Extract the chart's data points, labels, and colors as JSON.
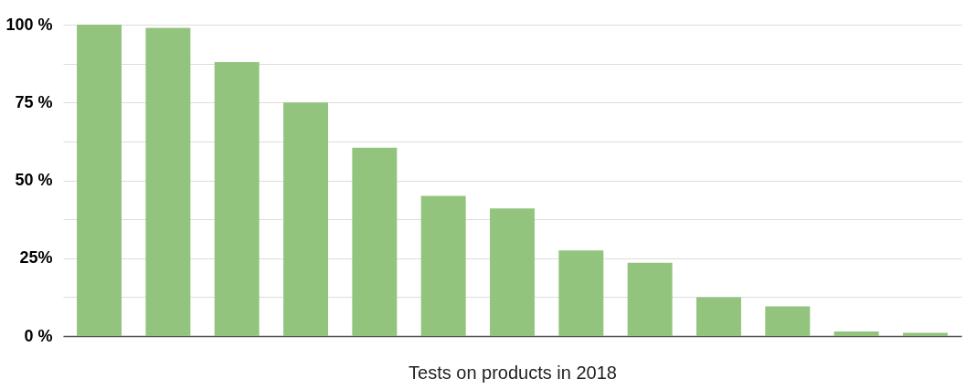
{
  "chart_data": {
    "type": "bar",
    "xlabel": "Tests on products in 2018",
    "categories": [
      null,
      null,
      null,
      null,
      null,
      null,
      null,
      null,
      null,
      null,
      null,
      null,
      null
    ],
    "values": [
      100,
      99,
      88,
      75,
      60.5,
      45,
      41,
      27.5,
      23.5,
      12.5,
      9.5,
      1.5,
      1
    ],
    "color": "#93c47d",
    "ylim": [
      0,
      100
    ],
    "yticks": [
      {
        "value": 0,
        "label": "0 %"
      },
      {
        "value": 12.5,
        "label": null
      },
      {
        "value": 25,
        "label": "25%"
      },
      {
        "value": 37.5,
        "label": null
      },
      {
        "value": 50,
        "label": "50 %"
      },
      {
        "value": 62.5,
        "label": null
      },
      {
        "value": 75,
        "label": "75 %"
      },
      {
        "value": 87.5,
        "label": null
      },
      {
        "value": 100,
        "label": "100 %"
      }
    ],
    "grid": "y",
    "tick_labels": "y"
  }
}
